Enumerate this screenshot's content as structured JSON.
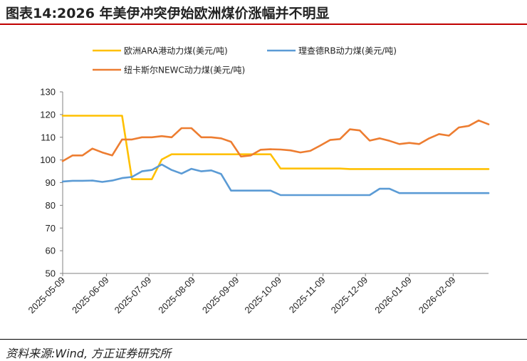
{
  "title": "图表14:2026 年美伊冲突伊始欧洲煤价涨幅并不明显",
  "source": "资料来源:Wind, 方正证券研究所",
  "chart_data": {
    "type": "line",
    "xlabel": "",
    "ylabel": "",
    "ylim": [
      50,
      130
    ],
    "y_ticks": [
      "50",
      "60",
      "70",
      "80",
      "90",
      "100",
      "110",
      "120",
      "130"
    ],
    "x_ticks": [
      "2025-05-09",
      "2025-06-09",
      "2025-07-09",
      "2025-08-09",
      "2025-09-09",
      "2025-10-09",
      "2025-11-09",
      "2025-12-09",
      "2026-01-09",
      "2026-02-09"
    ],
    "x_range": [
      "2025-05-09",
      "2026-03-06"
    ],
    "grid": false,
    "legend_position": "top",
    "series": [
      {
        "name": "欧洲ARA港动力煤(美元/吨)",
        "color": "#FFC000",
        "points": [
          [
            "2025-05-09",
            119.5
          ],
          [
            "2025-05-16",
            119.5
          ],
          [
            "2025-05-23",
            119.5
          ],
          [
            "2025-05-30",
            119.5
          ],
          [
            "2025-06-06",
            119.5
          ],
          [
            "2025-06-13",
            119.5
          ],
          [
            "2025-06-20",
            119.5
          ],
          [
            "2025-06-27",
            91.5
          ],
          [
            "2025-07-04",
            91.5
          ],
          [
            "2025-07-11",
            91.5
          ],
          [
            "2025-07-18",
            100.2
          ],
          [
            "2025-07-25",
            102.5
          ],
          [
            "2025-08-01",
            102.5
          ],
          [
            "2025-08-08",
            102.5
          ],
          [
            "2025-08-15",
            102.5
          ],
          [
            "2025-08-22",
            102.5
          ],
          [
            "2025-08-29",
            102.5
          ],
          [
            "2025-09-05",
            102.5
          ],
          [
            "2025-09-12",
            102.5
          ],
          [
            "2025-09-19",
            102.5
          ],
          [
            "2025-09-26",
            102.5
          ],
          [
            "2025-10-03",
            102.5
          ],
          [
            "2025-10-10",
            96.2
          ],
          [
            "2025-10-17",
            96.2
          ],
          [
            "2025-10-24",
            96.2
          ],
          [
            "2025-10-31",
            96.2
          ],
          [
            "2025-11-07",
            96.2
          ],
          [
            "2025-11-14",
            96.2
          ],
          [
            "2025-11-21",
            96.2
          ],
          [
            "2025-11-28",
            96.0
          ],
          [
            "2025-12-05",
            96.0
          ],
          [
            "2025-12-12",
            96.0
          ],
          [
            "2025-12-19",
            96.0
          ],
          [
            "2025-12-26",
            96.0
          ],
          [
            "2026-01-02",
            96.0
          ],
          [
            "2026-01-09",
            96.0
          ],
          [
            "2026-01-16",
            96.0
          ],
          [
            "2026-01-23",
            96.0
          ],
          [
            "2026-01-30",
            96.0
          ],
          [
            "2026-02-06",
            96.0
          ],
          [
            "2026-02-13",
            96.0
          ],
          [
            "2026-02-20",
            96.0
          ],
          [
            "2026-02-27",
            96.0
          ],
          [
            "2026-03-06",
            96.0
          ]
        ]
      },
      {
        "name": "理查德RB动力煤(美元/吨)",
        "color": "#5B9BD5",
        "points": [
          [
            "2025-05-09",
            90.5
          ],
          [
            "2025-05-16",
            90.8
          ],
          [
            "2025-05-23",
            90.8
          ],
          [
            "2025-05-30",
            90.9
          ],
          [
            "2025-06-06",
            90.3
          ],
          [
            "2025-06-13",
            90.9
          ],
          [
            "2025-06-20",
            92.0
          ],
          [
            "2025-06-27",
            92.5
          ],
          [
            "2025-07-04",
            95.0
          ],
          [
            "2025-07-11",
            95.6
          ],
          [
            "2025-07-18",
            98.0
          ],
          [
            "2025-07-25",
            95.6
          ],
          [
            "2025-08-01",
            94.0
          ],
          [
            "2025-08-08",
            96.1
          ],
          [
            "2025-08-15",
            95.0
          ],
          [
            "2025-08-22",
            95.4
          ],
          [
            "2025-08-29",
            93.8
          ],
          [
            "2025-09-05",
            86.5
          ],
          [
            "2025-09-12",
            86.5
          ],
          [
            "2025-09-19",
            86.5
          ],
          [
            "2025-09-26",
            86.5
          ],
          [
            "2025-10-03",
            86.5
          ],
          [
            "2025-10-10",
            84.5
          ],
          [
            "2025-10-17",
            84.5
          ],
          [
            "2025-10-24",
            84.5
          ],
          [
            "2025-10-31",
            84.5
          ],
          [
            "2025-11-07",
            84.5
          ],
          [
            "2025-11-14",
            84.5
          ],
          [
            "2025-11-21",
            84.5
          ],
          [
            "2025-11-28",
            84.5
          ],
          [
            "2025-12-05",
            84.5
          ],
          [
            "2025-12-12",
            84.5
          ],
          [
            "2025-12-19",
            87.3
          ],
          [
            "2025-12-26",
            87.3
          ],
          [
            "2026-01-02",
            85.4
          ],
          [
            "2026-01-09",
            85.4
          ],
          [
            "2026-01-16",
            85.4
          ],
          [
            "2026-01-23",
            85.4
          ],
          [
            "2026-01-30",
            85.4
          ],
          [
            "2026-02-06",
            85.4
          ],
          [
            "2026-02-13",
            85.4
          ],
          [
            "2026-02-20",
            85.4
          ],
          [
            "2026-02-27",
            85.4
          ],
          [
            "2026-03-06",
            85.4
          ]
        ]
      },
      {
        "name": "纽卡斯尔NEWC动力煤(美元/吨)",
        "color": "#ED7D31",
        "points": [
          [
            "2025-05-09",
            99.5
          ],
          [
            "2025-05-16",
            102.0
          ],
          [
            "2025-05-23",
            102.0
          ],
          [
            "2025-05-30",
            105.0
          ],
          [
            "2025-06-06",
            103.3
          ],
          [
            "2025-06-13",
            102.0
          ],
          [
            "2025-06-20",
            109.0
          ],
          [
            "2025-06-27",
            109.0
          ],
          [
            "2025-07-04",
            110.0
          ],
          [
            "2025-07-11",
            110.0
          ],
          [
            "2025-07-18",
            110.5
          ],
          [
            "2025-07-25",
            110.0
          ],
          [
            "2025-08-01",
            114.0
          ],
          [
            "2025-08-08",
            114.0
          ],
          [
            "2025-08-15",
            110.0
          ],
          [
            "2025-08-22",
            110.0
          ],
          [
            "2025-08-29",
            109.5
          ],
          [
            "2025-09-05",
            108.0
          ],
          [
            "2025-09-12",
            101.5
          ],
          [
            "2025-09-19",
            102.0
          ],
          [
            "2025-09-26",
            104.5
          ],
          [
            "2025-10-03",
            104.7
          ],
          [
            "2025-10-10",
            104.6
          ],
          [
            "2025-10-17",
            104.2
          ],
          [
            "2025-10-24",
            103.3
          ],
          [
            "2025-10-31",
            104.0
          ],
          [
            "2025-11-07",
            106.3
          ],
          [
            "2025-11-14",
            108.8
          ],
          [
            "2025-11-21",
            109.2
          ],
          [
            "2025-11-28",
            113.5
          ],
          [
            "2025-12-05",
            113.0
          ],
          [
            "2025-12-12",
            108.5
          ],
          [
            "2025-12-19",
            109.5
          ],
          [
            "2025-12-26",
            108.4
          ],
          [
            "2026-01-02",
            107.0
          ],
          [
            "2026-01-09",
            107.5
          ],
          [
            "2026-01-16",
            107.0
          ],
          [
            "2026-01-23",
            109.5
          ],
          [
            "2026-01-30",
            111.4
          ],
          [
            "2026-02-06",
            110.7
          ],
          [
            "2026-02-13",
            114.3
          ],
          [
            "2026-02-20",
            115.0
          ],
          [
            "2026-02-27",
            117.4
          ],
          [
            "2026-03-06",
            115.7
          ]
        ]
      }
    ]
  }
}
